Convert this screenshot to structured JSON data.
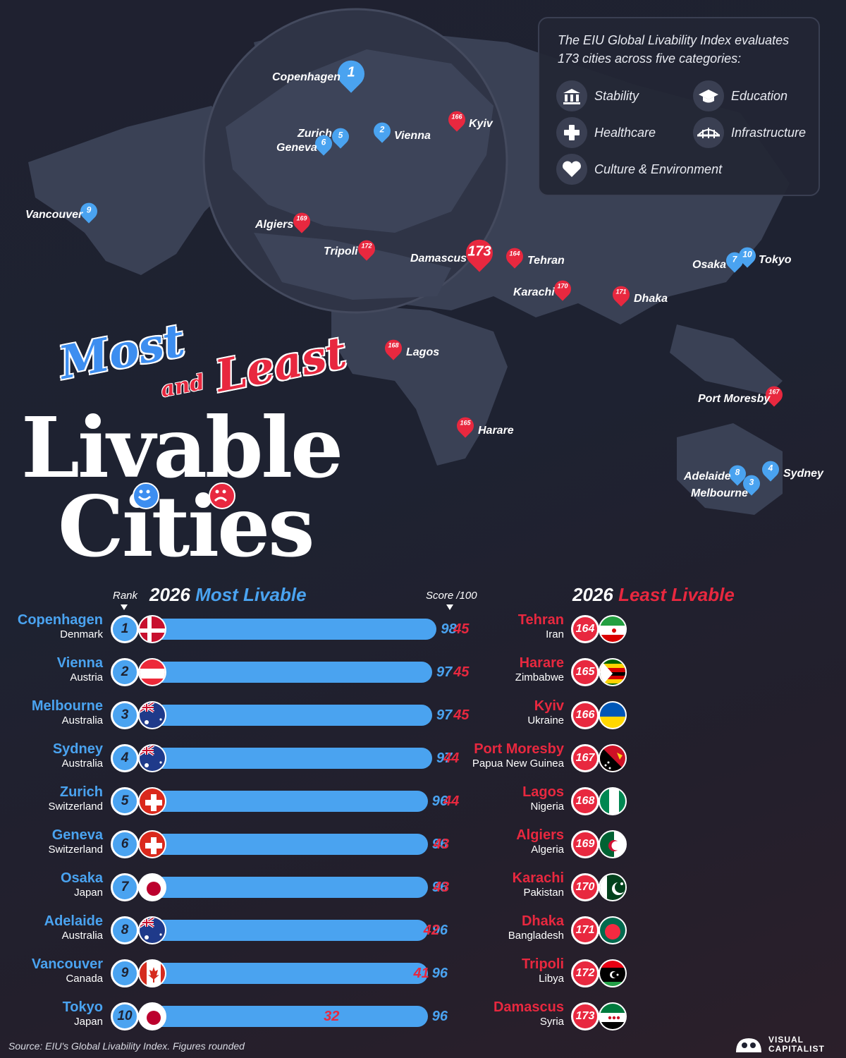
{
  "title": {
    "line1": "Most",
    "line1b": "and",
    "line1c": "Least",
    "line2": "Livable",
    "line3": "Cities"
  },
  "legend": {
    "intro": "The EIU Global Livability Index evaluates 173 cities across five categories:",
    "categories": [
      {
        "label": "Stability",
        "icon": "building-icon"
      },
      {
        "label": "Education",
        "icon": "graduation-cap-icon"
      },
      {
        "label": "Healthcare",
        "icon": "cross-icon"
      },
      {
        "label": "Infrastructure",
        "icon": "bridge-icon"
      },
      {
        "label": "Culture & Environment",
        "icon": "heart-icon"
      }
    ]
  },
  "map_pins": [
    {
      "city": "Copenhagen",
      "rank": "1",
      "kind": "most"
    },
    {
      "city": "Vienna",
      "rank": "2",
      "kind": "most"
    },
    {
      "city": "Melbourne",
      "rank": "3",
      "kind": "most"
    },
    {
      "city": "Sydney",
      "rank": "4",
      "kind": "most"
    },
    {
      "city": "Zurich",
      "rank": "5",
      "kind": "most"
    },
    {
      "city": "Geneva",
      "rank": "6",
      "kind": "most"
    },
    {
      "city": "Osaka",
      "rank": "7",
      "kind": "most"
    },
    {
      "city": "Adelaide",
      "rank": "8",
      "kind": "most"
    },
    {
      "city": "Vancouver",
      "rank": "9",
      "kind": "most"
    },
    {
      "city": "Tokyo",
      "rank": "10",
      "kind": "most"
    },
    {
      "city": "Tehran",
      "rank": "164",
      "kind": "least"
    },
    {
      "city": "Harare",
      "rank": "165",
      "kind": "least"
    },
    {
      "city": "Kyiv",
      "rank": "166",
      "kind": "least"
    },
    {
      "city": "Port Moresby",
      "rank": "167",
      "kind": "least"
    },
    {
      "city": "Lagos",
      "rank": "168",
      "kind": "least"
    },
    {
      "city": "Algiers",
      "rank": "169",
      "kind": "least"
    },
    {
      "city": "Karachi",
      "rank": "170",
      "kind": "least"
    },
    {
      "city": "Dhaka",
      "rank": "171",
      "kind": "least"
    },
    {
      "city": "Tripoli",
      "rank": "172",
      "kind": "least"
    },
    {
      "city": "Damascus",
      "rank": "173",
      "kind": "least"
    }
  ],
  "chart_data": [
    {
      "type": "bar",
      "title_year": "2026",
      "title_text": "Most Livable",
      "rank_label": "Rank",
      "score_label": "Score /100",
      "color": "#4aa3f0",
      "xlim": [
        0,
        100
      ],
      "rows": [
        {
          "rank": "1",
          "city": "Copenhagen",
          "country": "Denmark",
          "flag": "denmark",
          "value": 98
        },
        {
          "rank": "2",
          "city": "Vienna",
          "country": "Austria",
          "flag": "austria",
          "value": 97
        },
        {
          "rank": "3",
          "city": "Melbourne",
          "country": "Australia",
          "flag": "australia",
          "value": 97
        },
        {
          "rank": "4",
          "city": "Sydney",
          "country": "Australia",
          "flag": "australia",
          "value": 97
        },
        {
          "rank": "5",
          "city": "Zurich",
          "country": "Switzerland",
          "flag": "switzerland",
          "value": 96
        },
        {
          "rank": "6",
          "city": "Geneva",
          "country": "Switzerland",
          "flag": "switzerland",
          "value": 96
        },
        {
          "rank": "7",
          "city": "Osaka",
          "country": "Japan",
          "flag": "japan",
          "value": 96
        },
        {
          "rank": "8",
          "city": "Adelaide",
          "country": "Australia",
          "flag": "australia",
          "value": 96
        },
        {
          "rank": "9",
          "city": "Vancouver",
          "country": "Canada",
          "flag": "canada",
          "value": 96
        },
        {
          "rank": "10",
          "city": "Tokyo",
          "country": "Japan",
          "flag": "japan",
          "value": 96
        }
      ]
    },
    {
      "type": "bar",
      "title_year": "2026",
      "title_text": "Least Livable",
      "color": "#e8283f",
      "xlim": [
        0,
        100
      ],
      "rows": [
        {
          "rank": "164",
          "city": "Tehran",
          "country": "Iran",
          "flag": "iran",
          "value": 45
        },
        {
          "rank": "165",
          "city": "Harare",
          "country": "Zimbabwe",
          "flag": "zimbabwe",
          "value": 45
        },
        {
          "rank": "166",
          "city": "Kyiv",
          "country": "Ukraine",
          "flag": "ukraine",
          "value": 45
        },
        {
          "rank": "167",
          "city": "Port Moresby",
          "country": "Papua New Guinea",
          "flag": "png",
          "value": 44
        },
        {
          "rank": "168",
          "city": "Lagos",
          "country": "Nigeria",
          "flag": "nigeria",
          "value": 44
        },
        {
          "rank": "169",
          "city": "Algiers",
          "country": "Algeria",
          "flag": "algeria",
          "value": 43
        },
        {
          "rank": "170",
          "city": "Karachi",
          "country": "Pakistan",
          "flag": "pakistan",
          "value": 43
        },
        {
          "rank": "171",
          "city": "Dhaka",
          "country": "Bangladesh",
          "flag": "bangladesh",
          "value": 42
        },
        {
          "rank": "172",
          "city": "Tripoli",
          "country": "Libya",
          "flag": "libya",
          "value": 41
        },
        {
          "rank": "173",
          "city": "Damascus",
          "country": "Syria",
          "flag": "syria",
          "value": 32
        }
      ]
    }
  ],
  "footer": {
    "source": "Source: EIU's Global Livability Index. Figures rounded",
    "brand_line1": "VISUAL",
    "brand_line2": "CAPITALIST"
  },
  "colors": {
    "most": "#4aa3f0",
    "least": "#e8283f",
    "background": "#1f2130"
  }
}
